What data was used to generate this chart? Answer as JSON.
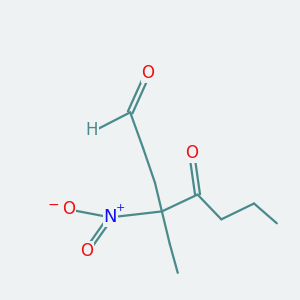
{
  "bg_color": "#eef2f3",
  "bond_color": "#4a8a8a",
  "atom_colors": {
    "O": "#ee1111",
    "N": "#1111ee",
    "H": "#4a8a8a"
  },
  "lw": 1.6,
  "fontsize": 11
}
